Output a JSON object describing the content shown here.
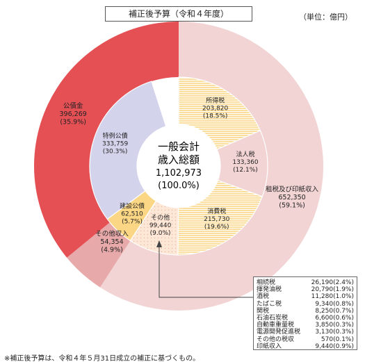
{
  "title": "補正後予算（令和４年度）",
  "unit": "（単位：億円）",
  "note": "※補正後予算は、令和４年５月31日成立の補正に基づくもの。",
  "chart_data": {
    "type": "pie",
    "center": {
      "line1": "一般会計",
      "line2": "歳入総額",
      "value": "1,102,973",
      "pct": "(100.0%)"
    },
    "outer": [
      {
        "name": "租税及び印紙収入",
        "value": 652350,
        "value_label": "652,350",
        "pct": "(59.1%)",
        "color": "#f2d4d4"
      },
      {
        "name": "その他収入",
        "value": 54354,
        "value_label": "54,354",
        "pct": "(4.9%)",
        "color": "#e7a9a9"
      },
      {
        "name": "公債金",
        "value": 396269,
        "value_label": "396,269",
        "pct": "(35.9%)",
        "color": "#e55055"
      }
    ],
    "inner": [
      {
        "name": "所得税",
        "value": 203820,
        "value_label": "203,820",
        "pct": "(18.5%)",
        "color": "#fbd684",
        "pattern": "stripe"
      },
      {
        "name": "法人税",
        "value": 133360,
        "value_label": "133,360",
        "pct": "(12.1%)",
        "color": "#f2d4d4"
      },
      {
        "name": "消費税",
        "value": 215730,
        "value_label": "215,730",
        "pct": "(19.6%)",
        "color": "#fbd684",
        "pattern": "stripe"
      },
      {
        "name": "その他",
        "value": 99440,
        "value_label": "99,440",
        "pct": "(9.0%)",
        "color": "#fde7d7",
        "pattern": "dots"
      },
      {
        "name": "建設公債",
        "value": 62510,
        "value_label": "62,510",
        "pct": "(5.7%)",
        "color": "#fbd684"
      },
      {
        "name": "特例公債",
        "value": 333759,
        "value_label": "333,759",
        "pct": "(30.3%)",
        "color": "#d3d3ec"
      }
    ],
    "breakdown": [
      {
        "name": "相続税",
        "value": "26,190",
        "pct": "(2.4%)"
      },
      {
        "name": "揮発油税",
        "value": "20,790",
        "pct": "(1.9%)"
      },
      {
        "name": "酒税",
        "value": "11,280",
        "pct": "(1.0%)"
      },
      {
        "name": "たばこ税",
        "value": "9,340",
        "pct": "(0.8%)"
      },
      {
        "name": "関税",
        "value": "8,250",
        "pct": "(0.7%)"
      },
      {
        "name": "石油石炭税",
        "value": "6,600",
        "pct": "(0.6%)"
      },
      {
        "name": "自動車重量税",
        "value": "3,850",
        "pct": "(0.3%)"
      },
      {
        "name": "電源開発促進税",
        "value": "3,130",
        "pct": "(0.3%)"
      },
      {
        "name": "その他の税収",
        "value": "570",
        "pct": "(0.1%)"
      },
      {
        "name": "印紙収入",
        "value": "9,440",
        "pct": "(0.9%)"
      }
    ]
  }
}
